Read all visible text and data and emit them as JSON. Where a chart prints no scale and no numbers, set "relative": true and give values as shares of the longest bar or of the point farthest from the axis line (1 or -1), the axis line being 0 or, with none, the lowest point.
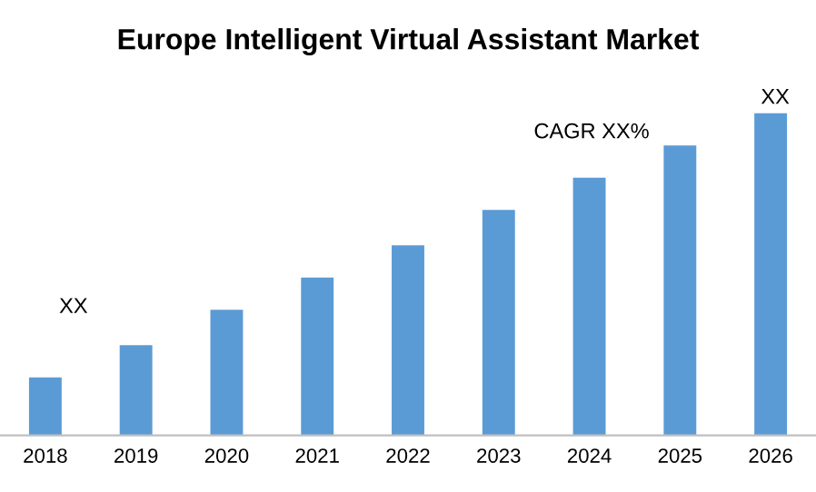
{
  "chart_data": {
    "type": "bar",
    "title": "Europe Intelligent Virtual Assistant Market",
    "categories": [
      "2018",
      "2019",
      "2020",
      "2021",
      "2022",
      "2023",
      "2024",
      "2025",
      "2026"
    ],
    "values": [
      0.18,
      0.28,
      0.39,
      0.49,
      0.59,
      0.7,
      0.8,
      0.9,
      1.0
    ],
    "color": "#5b9bd5",
    "relative": true,
    "grid": false,
    "legend": false,
    "annotations": [
      "XX",
      "CAGR XX%",
      "XX"
    ]
  }
}
